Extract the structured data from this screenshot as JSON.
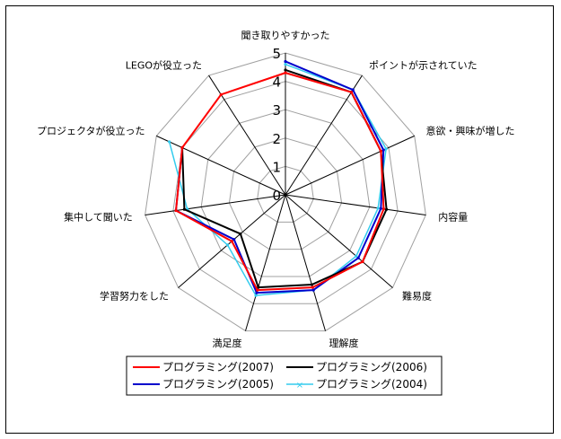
{
  "chart_data": {
    "type": "radar",
    "title": "",
    "axes": [
      "聞き取りやすかった",
      "ポイントが示されていた",
      "意欲・興味が増した",
      "内容量",
      "難易度",
      "理解度",
      "満足度",
      "学習努力をした",
      "集中して聞いた",
      "プロジェクタが役立った",
      "LEGOが役立った"
    ],
    "ticks": [
      "0",
      "1",
      "2",
      "3",
      "4",
      "5"
    ],
    "rmax": 5,
    "grid": true,
    "legend_position": "bottom",
    "series": [
      {
        "name": "プログラミング(2007)",
        "color": "#ff0000",
        "values": [
          4.3,
          4.3,
          3.7,
          3.5,
          3.6,
          3.4,
          3.5,
          2.5,
          3.9,
          4.0,
          4.2
        ]
      },
      {
        "name": "プログラミング(2006)",
        "color": "#000000",
        "values": [
          4.4,
          4.3,
          3.7,
          3.6,
          3.6,
          3.3,
          3.4,
          2.1,
          3.6,
          4.0,
          null
        ]
      },
      {
        "name": "プログラミング(2005)",
        "color": "#0000cc",
        "values": [
          4.7,
          4.4,
          3.8,
          3.4,
          3.4,
          3.5,
          3.6,
          2.4,
          3.9,
          4.0,
          null
        ]
      },
      {
        "name": "プログラミング(2004)",
        "color": "#33ccee",
        "values": [
          4.6,
          4.4,
          3.9,
          3.3,
          3.3,
          3.5,
          3.7,
          2.7,
          3.5,
          4.5,
          null
        ]
      }
    ]
  }
}
